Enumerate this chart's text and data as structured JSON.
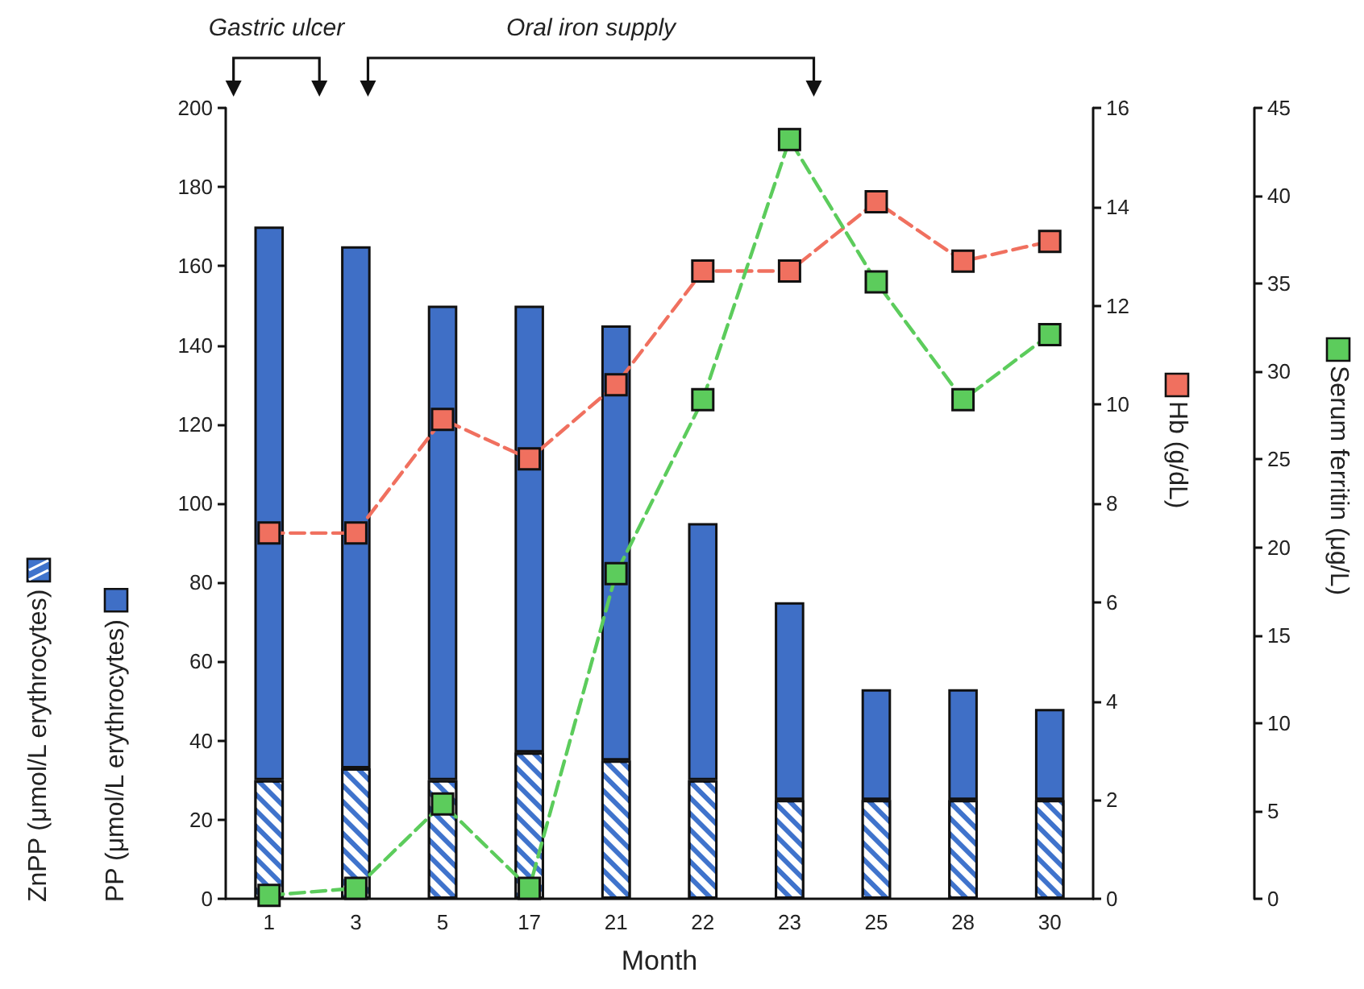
{
  "chart_data": {
    "type": "bar",
    "stacked": true,
    "xlabel": "Month",
    "categories": [
      "1",
      "3",
      "5",
      "17",
      "21",
      "22",
      "23",
      "25",
      "28",
      "30"
    ],
    "series": [
      {
        "name": "ZnPP (μmol/L erythrocytes)",
        "color": "#3f73cc",
        "values": [
          30,
          33,
          30,
          37,
          35,
          30,
          25,
          25,
          25,
          25
        ]
      },
      {
        "name": "PP (μmol/L erythrocytes)",
        "color": "#3f6fc6",
        "values": [
          140,
          132,
          120,
          113,
          110,
          65,
          50,
          28,
          28,
          23
        ]
      },
      {
        "name": "Hb (g/dL)",
        "type": "line",
        "axis": "y2",
        "color": "#f0705f",
        "values": [
          7.4,
          7.4,
          9.7,
          8.9,
          10.4,
          12.7,
          12.7,
          14.1,
          12.9,
          13.3
        ]
      },
      {
        "name": "Serum ferritin (μg/L)",
        "type": "line",
        "axis": "y3",
        "color": "#5ccc5c",
        "values": [
          0.2,
          0.6,
          5.4,
          0.6,
          18.5,
          28.4,
          43.2,
          35.1,
          28.4,
          32.1
        ]
      }
    ],
    "ylim": [
      0,
      200
    ],
    "yticks": [
      0,
      20,
      40,
      60,
      80,
      100,
      120,
      140,
      160,
      180,
      200
    ],
    "y2lim": [
      0,
      16
    ],
    "y2ticks": [
      0,
      2,
      4,
      6,
      8,
      10,
      12,
      14,
      16
    ],
    "y3lim": [
      0,
      45
    ],
    "y3ticks": [
      0,
      5,
      10,
      15,
      20,
      25,
      30,
      35,
      40,
      45
    ],
    "annotations": [
      "Gastric ulcer",
      "Oral iron supply"
    ],
    "legend": "left",
    "grid": false,
    "marker": "square",
    "line_style": "dashed"
  }
}
